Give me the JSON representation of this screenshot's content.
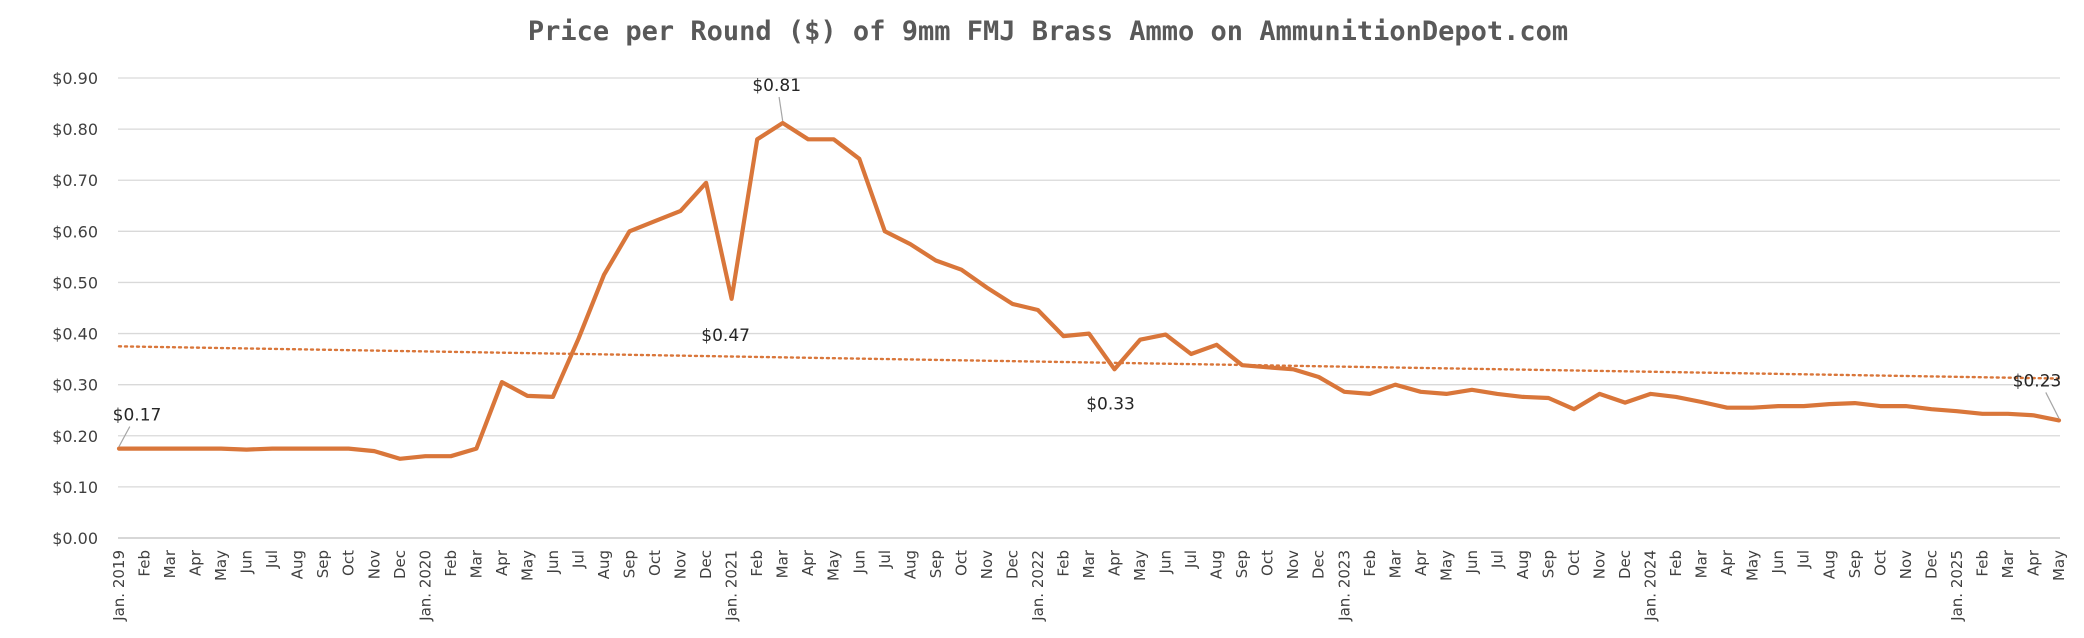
{
  "chart_data": {
    "type": "line",
    "title": "Price per Round ($) of 9mm FMJ Brass Ammo on AmmunitionDepot.com",
    "xlabel": "",
    "ylabel": "",
    "ylim": [
      0,
      0.9
    ],
    "y_ticks": [
      "$0.00",
      "$0.10",
      "$0.20",
      "$0.30",
      "$0.40",
      "$0.50",
      "$0.60",
      "$0.70",
      "$0.80",
      "$0.90"
    ],
    "grid": true,
    "legend": "none",
    "x": [
      "Jan. 2019",
      "Feb",
      "Mar",
      "Apr",
      "May",
      "Jun",
      "Jul",
      "Aug",
      "Sep",
      "Oct",
      "Nov",
      "Dec",
      "Jan. 2020",
      "Feb",
      "Mar",
      "Apr",
      "May",
      "Jun",
      "Jul",
      "Aug",
      "Sep",
      "Oct",
      "Nov",
      "Dec",
      "Jan. 2021",
      "Feb",
      "Mar",
      "Apr",
      "May",
      "Jun",
      "Jul",
      "Aug",
      "Sep",
      "Oct",
      "Nov",
      "Dec",
      "Jan. 2022",
      "Feb",
      "Mar",
      "Apr",
      "May",
      "Jun",
      "Jul",
      "Aug",
      "Sep",
      "Oct",
      "Nov",
      "Dec",
      "Jan. 2023",
      "Feb",
      "Mar",
      "Apr",
      "May",
      "Jun",
      "Jul",
      "Aug",
      "Sep",
      "Oct",
      "Nov",
      "Dec",
      "Jan. 2024",
      "Feb",
      "Mar",
      "Apr",
      "May",
      "Jun",
      "Jul",
      "Aug",
      "Sep",
      "Oct",
      "Nov",
      "Dec",
      "Jan. 2025",
      "Feb",
      "Mar",
      "Apr",
      "May"
    ],
    "series": [
      {
        "color": "#D9763A",
        "values": [
          0.175,
          0.175,
          0.175,
          0.175,
          0.175,
          0.173,
          0.175,
          0.175,
          0.175,
          0.175,
          0.17,
          0.155,
          0.16,
          0.16,
          0.175,
          0.305,
          0.278,
          0.276,
          0.39,
          0.515,
          0.6,
          0.62,
          0.64,
          0.695,
          0.468,
          0.78,
          0.812,
          0.78,
          0.78,
          0.742,
          0.6,
          0.575,
          0.543,
          0.525,
          0.49,
          0.458,
          0.446,
          0.395,
          0.4,
          0.33,
          0.388,
          0.398,
          0.36,
          0.378,
          0.338,
          0.334,
          0.33,
          0.315,
          0.286,
          0.282,
          0.3,
          0.286,
          0.282,
          0.29,
          0.282,
          0.276,
          0.274,
          0.252,
          0.282,
          0.265,
          0.282,
          0.276,
          0.266,
          0.255,
          0.255,
          0.258,
          0.258,
          0.262,
          0.264,
          0.258,
          0.258,
          0.252,
          0.248,
          0.243,
          0.243,
          0.24,
          0.23
        ]
      }
    ],
    "trendline": {
      "type": "linear",
      "style": "dotted",
      "color": "#D9763A",
      "start": 0.375,
      "end": 0.312
    },
    "annotations": [
      {
        "index": 0,
        "text": "$0.17"
      },
      {
        "index": 24,
        "text": "$0.47"
      },
      {
        "index": 26,
        "text": "$0.81"
      },
      {
        "index": 39,
        "text": "$0.33"
      },
      {
        "index": 76,
        "text": "$0.23"
      }
    ]
  }
}
